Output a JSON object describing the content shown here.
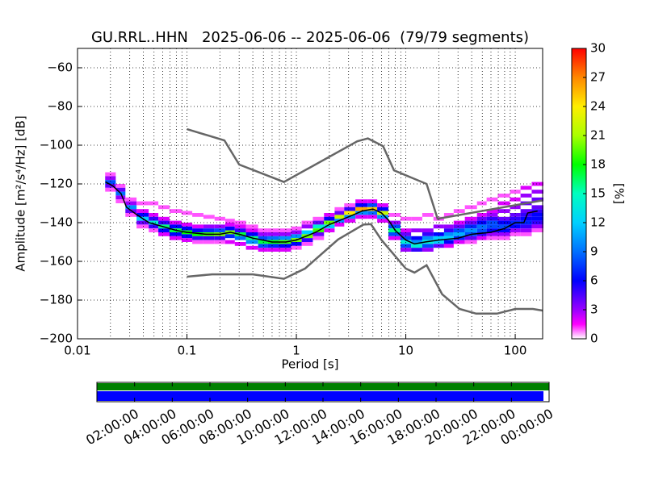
{
  "chart_data": {
    "type": "ppsd",
    "title": "GU.RRL..HHN   2025-06-06 -- 2025-06-06  (79/79 segments)",
    "xlabel": "Period [s]",
    "ylabel": "Amplitude [m²/s⁴/Hz] [dB]",
    "xscale": "log",
    "xlim": [
      0.01,
      178
    ],
    "xticks": [
      0.01,
      0.1,
      1,
      10,
      100
    ],
    "xminorticks": [
      0.02,
      0.03,
      0.04,
      0.05,
      0.06,
      0.07,
      0.08,
      0.09,
      0.2,
      0.3,
      0.4,
      0.5,
      0.6,
      0.7,
      0.8,
      0.9,
      2,
      3,
      4,
      5,
      6,
      7,
      8,
      9,
      20,
      30,
      40,
      50,
      60,
      70,
      80,
      90
    ],
    "ylim": [
      -200,
      -50
    ],
    "yticks": [
      {
        "value": -60,
        "label": "−60"
      },
      {
        "value": -80,
        "label": "−80"
      },
      {
        "value": -100,
        "label": "−100"
      },
      {
        "value": -120,
        "label": "−120"
      },
      {
        "value": -140,
        "label": "−140"
      },
      {
        "value": -160,
        "label": "−160"
      },
      {
        "value": -180,
        "label": "−180"
      },
      {
        "value": -200,
        "label": "−200"
      }
    ],
    "grid": true,
    "histogram": [
      {
        "period": 0.02,
        "amplitudes": [
          -115,
          -117,
          -119,
          -121,
          -123
        ],
        "percents": [
          1,
          3,
          8,
          4,
          1
        ]
      },
      {
        "period": 0.025,
        "amplitudes": [
          -121,
          -123,
          -125,
          -127,
          -129
        ],
        "percents": [
          1,
          4,
          9,
          3,
          1
        ]
      },
      {
        "period": 0.03,
        "amplitudes": [
          -128,
          -130,
          -132,
          -134,
          -136
        ],
        "percents": [
          1,
          3,
          10,
          4,
          1
        ]
      },
      {
        "period": 0.04,
        "amplitudes": [
          -130,
          -134,
          -136,
          -138,
          -140,
          -142
        ],
        "percents": [
          1,
          2,
          6,
          12,
          4,
          1
        ]
      },
      {
        "period": 0.05,
        "amplitudes": [
          -130,
          -136,
          -138,
          -140,
          -142,
          -144
        ],
        "percents": [
          1,
          2,
          5,
          14,
          5,
          1
        ]
      },
      {
        "period": 0.06,
        "amplitudes": [
          -132,
          -138,
          -140,
          -142,
          -144,
          -146
        ],
        "percents": [
          1,
          2,
          5,
          16,
          6,
          2
        ]
      },
      {
        "period": 0.08,
        "amplitudes": [
          -134,
          -140,
          -142,
          -144,
          -146,
          -148
        ],
        "percents": [
          1,
          2,
          6,
          17,
          6,
          2
        ]
      },
      {
        "period": 0.1,
        "amplitudes": [
          -135,
          -141,
          -143,
          -145,
          -147,
          -149
        ],
        "percents": [
          1,
          2,
          6,
          18,
          6,
          2
        ]
      },
      {
        "period": 0.125,
        "amplitudes": [
          -136,
          -142,
          -144,
          -146,
          -148,
          -150
        ],
        "percents": [
          1,
          2,
          6,
          18,
          5,
          1
        ]
      },
      {
        "period": 0.16,
        "amplitudes": [
          -137,
          -142,
          -144,
          -146,
          -148,
          -150
        ],
        "percents": [
          1,
          3,
          7,
          19,
          5,
          1
        ]
      },
      {
        "period": 0.2,
        "amplitudes": [
          -138,
          -142,
          -144,
          -146,
          -148,
          -150
        ],
        "percents": [
          1,
          3,
          8,
          20,
          5,
          1
        ]
      },
      {
        "period": 0.25,
        "amplitudes": [
          -139,
          -141,
          -143,
          -145,
          -147,
          -150
        ],
        "percents": [
          1,
          2,
          6,
          20,
          7,
          2
        ]
      },
      {
        "period": 0.3,
        "amplitudes": [
          -140,
          -142,
          -144,
          -146,
          -148,
          -151
        ],
        "percents": [
          1,
          2,
          5,
          17,
          9,
          2
        ]
      },
      {
        "period": 0.4,
        "amplitudes": [
          -142,
          -144,
          -146,
          -148,
          -150,
          -153
        ],
        "percents": [
          1,
          2,
          6,
          16,
          10,
          2
        ]
      },
      {
        "period": 0.5,
        "amplitudes": [
          -144,
          -146,
          -148,
          -150,
          -152,
          -154
        ],
        "percents": [
          1,
          3,
          8,
          17,
          8,
          2
        ]
      },
      {
        "period": 0.6,
        "amplitudes": [
          -144,
          -146,
          -148,
          -150,
          -152,
          -154
        ],
        "percents": [
          1,
          3,
          9,
          18,
          7,
          2
        ]
      },
      {
        "period": 0.8,
        "amplitudes": [
          -144,
          -146,
          -148,
          -150,
          -152,
          -154
        ],
        "percents": [
          1,
          3,
          10,
          19,
          6,
          2
        ]
      },
      {
        "period": 1,
        "amplitudes": [
          -143,
          -145,
          -147,
          -149,
          -151,
          -153
        ],
        "percents": [
          1,
          3,
          10,
          20,
          6,
          1
        ]
      },
      {
        "period": 1.25,
        "amplitudes": [
          -140,
          -142,
          -145,
          -147,
          -149,
          -151
        ],
        "percents": [
          1,
          3,
          12,
          20,
          5,
          1
        ]
      },
      {
        "period": 1.6,
        "amplitudes": [
          -138,
          -140,
          -142,
          -144,
          -146,
          -148
        ],
        "percents": [
          1,
          4,
          14,
          19,
          4,
          1
        ]
      },
      {
        "period": 2,
        "amplitudes": [
          -136,
          -138,
          -140,
          -142,
          -144
        ],
        "percents": [
          2,
          6,
          20,
          12,
          2
        ]
      },
      {
        "period": 2.5,
        "amplitudes": [
          -133,
          -135,
          -137,
          -139,
          -141
        ],
        "percents": [
          1,
          4,
          22,
          10,
          2
        ]
      },
      {
        "period": 3,
        "amplitudes": [
          -131,
          -133,
          -135,
          -137,
          -139
        ],
        "percents": [
          1,
          5,
          24,
          10,
          2
        ]
      },
      {
        "period": 4,
        "amplitudes": [
          -129,
          -131,
          -133,
          -135,
          -137
        ],
        "percents": [
          2,
          6,
          26,
          10,
          2
        ]
      },
      {
        "period": 5,
        "amplitudes": [
          -129,
          -131,
          -133,
          -135,
          -137
        ],
        "percents": [
          2,
          8,
          25,
          9,
          2
        ]
      },
      {
        "period": 6,
        "amplitudes": [
          -131,
          -133,
          -135,
          -137,
          -139
        ],
        "percents": [
          2,
          6,
          22,
          10,
          2
        ]
      },
      {
        "period": 8,
        "amplitudes": [
          -136,
          -140,
          -142,
          -144,
          -146,
          -148
        ],
        "percents": [
          1,
          3,
          8,
          16,
          8,
          2
        ]
      },
      {
        "period": 10,
        "amplitudes": [
          -138,
          -144,
          -146,
          -148,
          -150,
          -152,
          -154
        ],
        "percents": [
          1,
          2,
          4,
          8,
          14,
          8,
          3
        ]
      },
      {
        "period": 12.5,
        "amplitudes": [
          -138,
          -144,
          -148,
          -150,
          -152,
          -154
        ],
        "percents": [
          1,
          3,
          6,
          10,
          14,
          5
        ]
      },
      {
        "period": 16,
        "amplitudes": [
          -136,
          -144,
          -146,
          -148,
          -150,
          -152,
          -154
        ],
        "percents": [
          1,
          3,
          5,
          10,
          14,
          8,
          3
        ]
      },
      {
        "period": 20,
        "amplitudes": [
          -138,
          -142,
          -146,
          -148,
          -150,
          -152
        ],
        "percents": [
          1,
          3,
          6,
          12,
          12,
          4
        ]
      },
      {
        "period": 25,
        "amplitudes": [
          -136,
          -142,
          -144,
          -146,
          -148,
          -150,
          -152
        ],
        "percents": [
          1,
          3,
          5,
          10,
          12,
          6,
          2
        ]
      },
      {
        "period": 30,
        "amplitudes": [
          -134,
          -140,
          -142,
          -144,
          -146,
          -148,
          -150
        ],
        "percents": [
          1,
          2,
          4,
          8,
          11,
          7,
          2
        ]
      },
      {
        "period": 40,
        "amplitudes": [
          -132,
          -138,
          -140,
          -142,
          -144,
          -146,
          -148,
          -150
        ],
        "percents": [
          1,
          2,
          4,
          7,
          10,
          8,
          4,
          1
        ]
      },
      {
        "period": 50,
        "amplitudes": [
          -130,
          -136,
          -138,
          -140,
          -142,
          -144,
          -146,
          -148
        ],
        "percents": [
          1,
          2,
          4,
          6,
          9,
          8,
          5,
          2
        ]
      },
      {
        "period": 60,
        "amplitudes": [
          -128,
          -134,
          -136,
          -138,
          -140,
          -142,
          -144,
          -146,
          -148
        ],
        "percents": [
          1,
          2,
          3,
          5,
          8,
          8,
          6,
          3,
          1
        ]
      },
      {
        "period": 80,
        "amplitudes": [
          -126,
          -130,
          -134,
          -138,
          -140,
          -142,
          -144,
          -146,
          -148
        ],
        "percents": [
          1,
          2,
          3,
          4,
          6,
          8,
          6,
          3,
          1
        ]
      },
      {
        "period": 100,
        "amplitudes": [
          -124,
          -128,
          -132,
          -136,
          -138,
          -140,
          -142,
          -144,
          -146
        ],
        "percents": [
          1,
          2,
          3,
          4,
          5,
          7,
          6,
          3,
          1
        ]
      },
      {
        "period": 125,
        "amplitudes": [
          -122,
          -126,
          -130,
          -134,
          -136,
          -138,
          -140,
          -142,
          -144,
          -146
        ],
        "percents": [
          2,
          3,
          4,
          4,
          5,
          6,
          7,
          5,
          3,
          1
        ]
      },
      {
        "period": 160,
        "amplitudes": [
          -120,
          -124,
          -128,
          -132,
          -134,
          -136,
          -138,
          -140,
          -142,
          -144
        ],
        "percents": [
          2,
          3,
          4,
          4,
          5,
          6,
          6,
          5,
          3,
          1
        ]
      }
    ],
    "lines": [
      {
        "color": "#666666",
        "x": [
          0.1,
          0.22,
          0.3,
          0.77,
          3.6,
          4.5,
          6.2,
          7.8,
          15.5,
          19.5,
          178
        ],
        "values": [
          -91.7,
          -97.5,
          -110,
          -119,
          -98,
          -96.5,
          -100.5,
          -113,
          -120,
          -138,
          -128.5
        ]
      },
      {
        "color": "#666666",
        "x": [
          0.1,
          0.17,
          0.4,
          0.77,
          1.2,
          2.4,
          4.1,
          4.8,
          6,
          10,
          12,
          15.5,
          21.5,
          31,
          44,
          68,
          100,
          145,
          178
        ],
        "values": [
          -167.9,
          -166.7,
          -166.7,
          -169,
          -163.7,
          -148.7,
          -141,
          -140.8,
          -149,
          -163.7,
          -165.8,
          -162,
          -177,
          -184.6,
          -187,
          -187,
          -184.6,
          -184.6,
          -185.4
        ]
      },
      {
        "color": "#000000",
        "x": [
          0.018,
          0.021,
          0.025,
          0.028,
          0.035,
          0.045,
          0.06,
          0.08,
          0.1,
          0.15,
          0.2,
          0.25,
          0.3,
          0.4,
          0.6,
          0.8,
          1,
          1.5,
          2,
          3,
          4,
          5,
          6,
          7,
          8,
          10,
          12,
          15,
          20,
          30,
          40,
          60,
          80,
          100,
          120,
          130,
          160
        ],
        "values": [
          -119,
          -121,
          -125,
          -132,
          -136,
          -140,
          -142,
          -144,
          -145,
          -146,
          -146,
          -145,
          -146,
          -148,
          -150,
          -150,
          -149,
          -145,
          -141,
          -137,
          -134,
          -133,
          -135,
          -139,
          -144,
          -149,
          -151,
          -150,
          -149,
          -148,
          -146,
          -145,
          -143,
          -140,
          -140,
          -135,
          -134
        ]
      }
    ],
    "colorbar": {
      "label": "[%]",
      "lim": [
        0,
        30
      ],
      "ticks": [
        0,
        3,
        6,
        9,
        12,
        15,
        18,
        21,
        24,
        27,
        30
      ],
      "colormap": [
        [
          0,
          "#ffffff"
        ],
        [
          1.5,
          "#ff00ff"
        ],
        [
          3,
          "#9900ff"
        ],
        [
          6,
          "#0000ff"
        ],
        [
          9,
          "#0070ff"
        ],
        [
          12,
          "#00d0ff"
        ],
        [
          15,
          "#00ffc0"
        ],
        [
          18,
          "#00ff00"
        ],
        [
          21,
          "#aaff00"
        ],
        [
          24,
          "#ffee00"
        ],
        [
          27,
          "#ff8800"
        ],
        [
          30,
          "#ff0000"
        ]
      ]
    },
    "coverage": {
      "xlim": [
        0,
        24
      ],
      "xticks": [
        {
          "value": 2,
          "label": "02:00:00"
        },
        {
          "value": 4,
          "label": "04:00:00"
        },
        {
          "value": 6,
          "label": "06:00:00"
        },
        {
          "value": 8,
          "label": "08:00:00"
        },
        {
          "value": 10,
          "label": "10:00:00"
        },
        {
          "value": 12,
          "label": "12:00:00"
        },
        {
          "value": 14,
          "label": "14:00:00"
        },
        {
          "value": 16,
          "label": "16:00:00"
        },
        {
          "value": 18,
          "label": "18:00:00"
        },
        {
          "value": 20,
          "label": "20:00:00"
        },
        {
          "value": 22,
          "label": "22:00:00"
        },
        {
          "value": 24,
          "label": "00:00:00"
        }
      ],
      "bars": [
        {
          "color": "#008000",
          "start": 0,
          "end": 24
        },
        {
          "color": "#0000ff",
          "start": 0,
          "end": 23.7
        }
      ]
    }
  }
}
